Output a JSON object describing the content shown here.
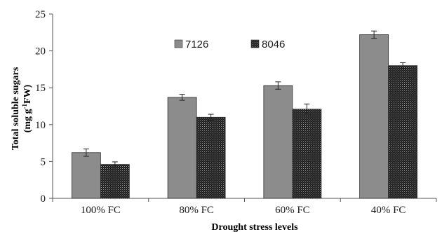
{
  "chart_data": {
    "type": "bar",
    "categories": [
      "100% FC",
      "80% FC",
      "60% FC",
      "40% FC"
    ],
    "series": [
      {
        "name": "7126",
        "values": [
          6.2,
          13.7,
          15.3,
          22.2
        ],
        "errors": [
          0.5,
          0.4,
          0.5,
          0.5
        ],
        "color": "#8c8c8c",
        "pattern": "solid"
      },
      {
        "name": "8046",
        "values": [
          4.6,
          11.0,
          12.1,
          18.0
        ],
        "errors": [
          0.35,
          0.4,
          0.7,
          0.4
        ],
        "color": "#2b2b2b",
        "pattern": "dotted"
      }
    ],
    "xlabel": "Drought stress levels",
    "ylabel_line1": "Total soluble sugars",
    "ylabel_line2_prefix": "(mg g",
    "ylabel_line2_sup": "-1",
    "ylabel_line2_suffix": "FW)",
    "ylim": [
      0,
      25
    ],
    "yticks": [
      0,
      5,
      10,
      15,
      20,
      25
    ],
    "grid": false,
    "legend_position": "top-center"
  }
}
